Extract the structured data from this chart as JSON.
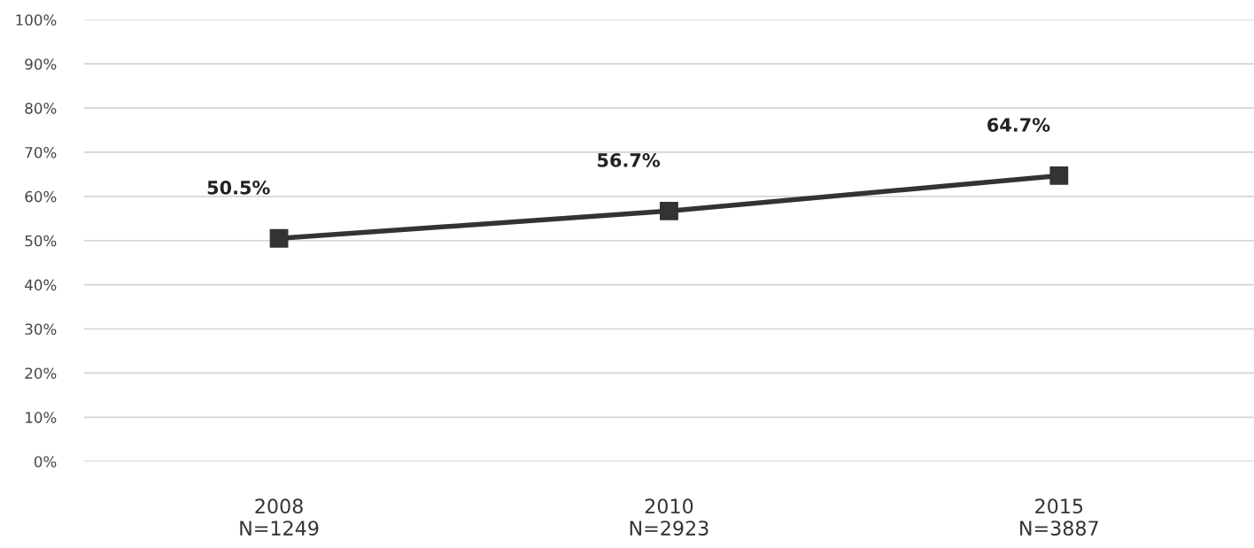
{
  "chart_data": {
    "type": "line",
    "categories": [
      "2008\nN=1249",
      "2010\nN=2923",
      "2015\nN=3887"
    ],
    "series": [
      {
        "color": "#333333",
        "values": [
          50.5,
          56.7,
          64.7
        ],
        "value_labels": [
          "50.5%",
          "56.7%",
          "64.7%"
        ]
      }
    ],
    "ylim": [
      0,
      100
    ],
    "yticks": [
      {
        "value": 0,
        "label": "0%"
      },
      {
        "value": 10,
        "label": "10%"
      },
      {
        "value": 20,
        "label": "20%"
      },
      {
        "value": 30,
        "label": "30%"
      },
      {
        "value": 40,
        "label": "40%"
      },
      {
        "value": 50,
        "label": "50%"
      },
      {
        "value": 60,
        "label": "60%"
      },
      {
        "value": 70,
        "label": "70%"
      },
      {
        "value": 80,
        "label": "80%"
      },
      {
        "value": 90,
        "label": "90%"
      },
      {
        "value": 100,
        "label": "100%"
      }
    ],
    "grid": "y",
    "marker": "square",
    "line_style": "solid",
    "legend": false
  }
}
